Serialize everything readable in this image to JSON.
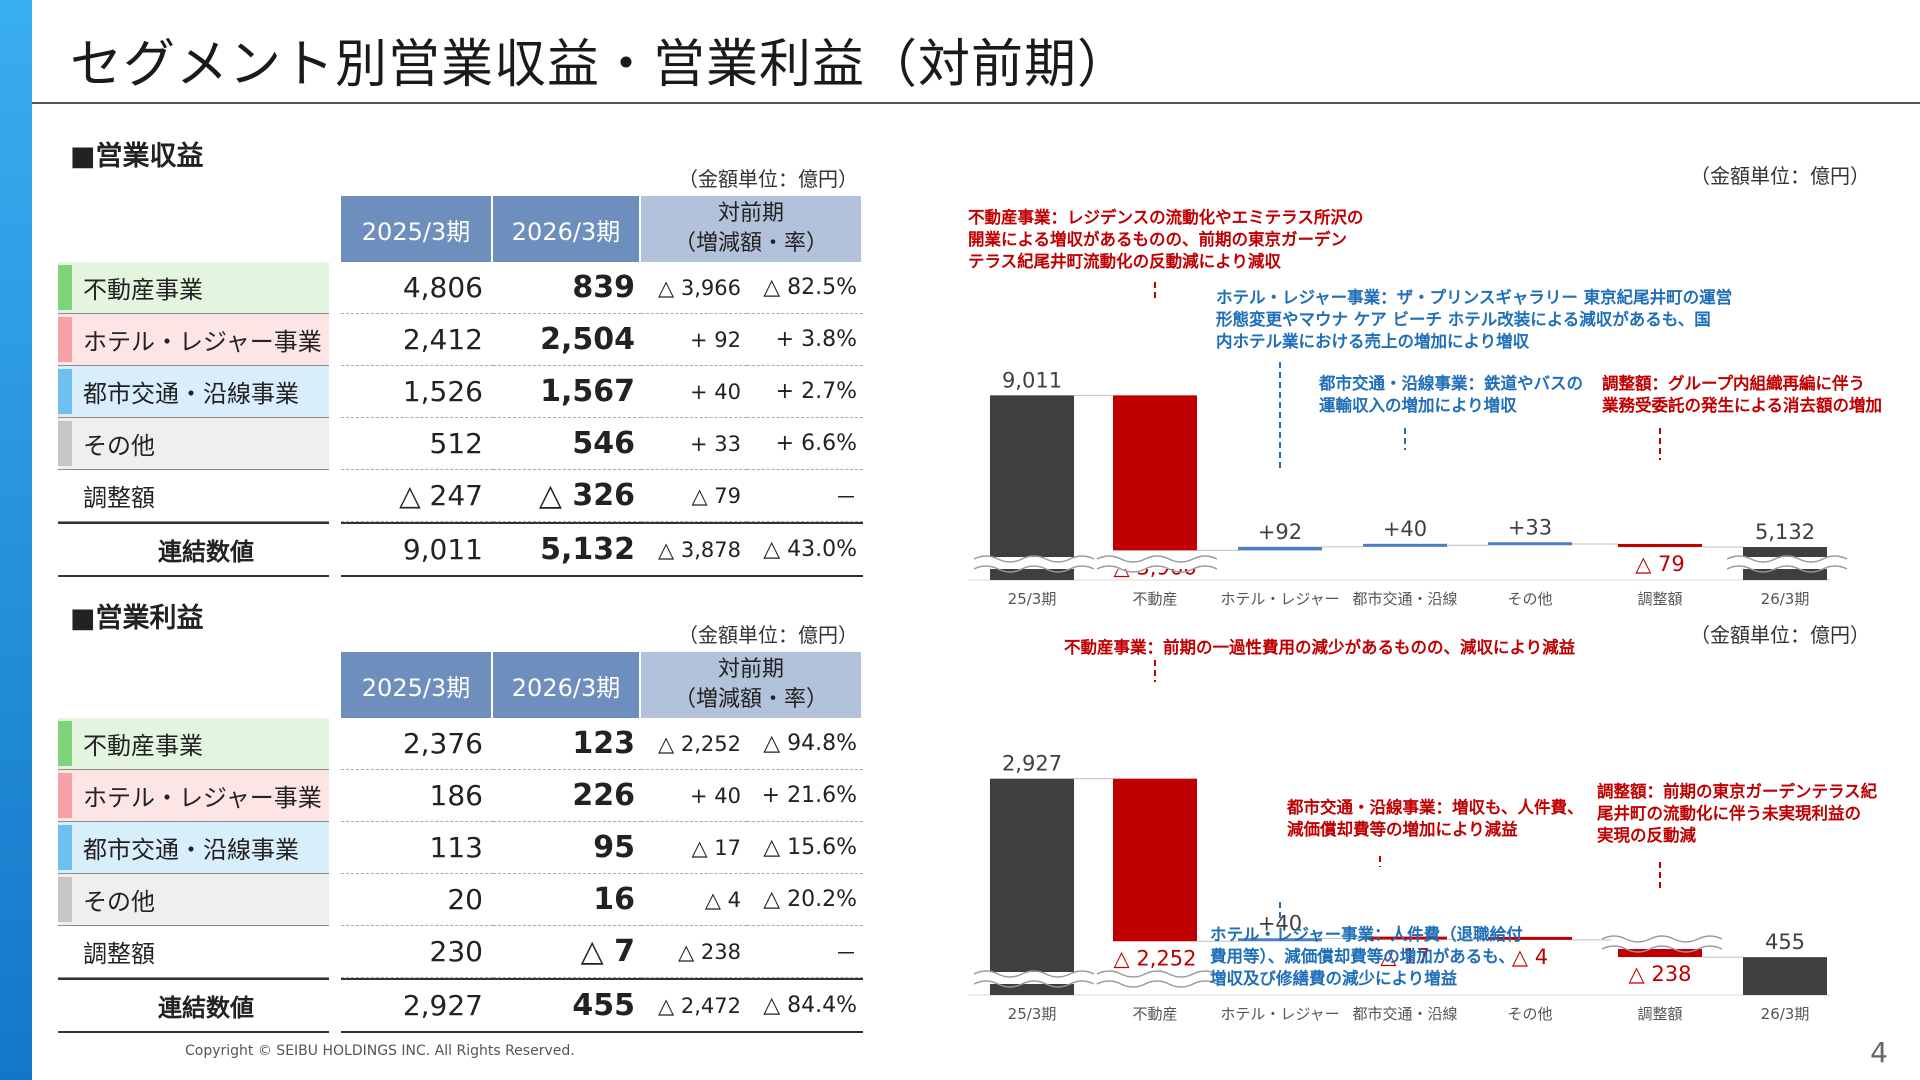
{
  "title": "セグメント別営業収益・営業利益（対前期）",
  "copyright": "Copyright © SEIBU HOLDINGS INC. All Rights Reserved.",
  "page_number": "4",
  "colors": {
    "accent": "#1377c8",
    "header": "#6e8fbd",
    "header_yoy": "#b2c2da",
    "bar_dark": "#3f3f3f",
    "bar_red": "#c00000",
    "bar_blue": "#4a7fc1",
    "note_red": "#c00000",
    "note_blue": "#1f6fb8"
  },
  "revenue": {
    "heading": "■営業収益",
    "unit": "（金額単位：億円）",
    "columns": {
      "prev": "2025/3期",
      "curr": "2026/3期",
      "yoy_line1": "対前期",
      "yoy_line2": "（増減額・率）"
    },
    "rows": [
      {
        "name": "不動産事業",
        "prev": "4,806",
        "curr": "839",
        "diff": "△ 3,966",
        "rate": "△ 82.5%"
      },
      {
        "name": "ホテル・レジャー事業",
        "prev": "2,412",
        "curr": "2,504",
        "diff": "+ 92",
        "rate": "+ 3.8%"
      },
      {
        "name": "都市交通・沿線事業",
        "prev": "1,526",
        "curr": "1,567",
        "diff": "+ 40",
        "rate": "+ 2.7%"
      },
      {
        "name": "その他",
        "prev": "512",
        "curr": "546",
        "diff": "+ 33",
        "rate": "+ 6.6%"
      },
      {
        "name": "調整額",
        "prev": "△ 247",
        "curr": "△ 326",
        "diff": "△ 79",
        "rate": "－"
      },
      {
        "name": "連結数値",
        "prev": "9,011",
        "curr": "5,132",
        "diff": "△ 3,878",
        "rate": "△ 43.0%"
      }
    ]
  },
  "profit": {
    "heading": "■営業利益",
    "unit": "（金額単位：億円）",
    "columns": {
      "prev": "2025/3期",
      "curr": "2026/3期",
      "yoy_line1": "対前期",
      "yoy_line2": "（増減額・率）"
    },
    "rows": [
      {
        "name": "不動産事業",
        "prev": "2,376",
        "curr": "123",
        "diff": "△ 2,252",
        "rate": "△ 94.8%"
      },
      {
        "name": "ホテル・レジャー事業",
        "prev": "186",
        "curr": "226",
        "diff": "+ 40",
        "rate": "+ 21.6%"
      },
      {
        "name": "都市交通・沿線事業",
        "prev": "113",
        "curr": "95",
        "diff": "△ 17",
        "rate": "△ 15.6%"
      },
      {
        "name": "その他",
        "prev": "20",
        "curr": "16",
        "diff": "△ 4",
        "rate": "△ 20.2%"
      },
      {
        "name": "調整額",
        "prev": "230",
        "curr": "△ 7",
        "diff": "△ 238",
        "rate": "－"
      },
      {
        "name": "連結数値",
        "prev": "2,927",
        "curr": "455",
        "diff": "△ 2,472",
        "rate": "△ 84.4%"
      }
    ]
  },
  "chart_data": [
    {
      "type": "waterfall",
      "unit": "（金額単位：億円）",
      "categories": [
        "25/3期",
        "不動産",
        "ホテル・レジャー",
        "都市交通・沿線",
        "その他",
        "調整額",
        "26/3期"
      ],
      "values": [
        9011,
        -3966,
        92,
        40,
        33,
        -79,
        5132
      ],
      "labels": [
        "9,011",
        "△ 3,966",
        "+92",
        "+40",
        "+33",
        "△ 79",
        "5,132"
      ],
      "axis_break": true,
      "notes": [
        {
          "text": [
            "不動産事業：レジデンスの流動化やエミテラス所沢の",
            "開業による増収があるものの、前期の東京ガーデン",
            "テラス紀尾井町流動化の反動減により減収"
          ],
          "color": "red"
        },
        {
          "text": [
            "ホテル・レジャー事業：ザ・プリンスギャラリー 東京紀尾井町の運営",
            "形態変更やマウナ ケア ビーチ ホテル改装による減収があるも、国",
            "内ホテル業における売上の増加により増収"
          ],
          "color": "blue"
        },
        {
          "text": [
            "都市交通・沿線事業：鉄道やバスの",
            "運輸収入の増加により増収"
          ],
          "color": "blue"
        },
        {
          "text": [
            "調整額：グループ内組織再編に伴う",
            "業務受委託の発生による消去額の増加"
          ],
          "color": "red"
        }
      ]
    },
    {
      "type": "waterfall",
      "unit": "（金額単位：億円）",
      "categories": [
        "25/3期",
        "不動産",
        "ホテル・レジャー",
        "都市交通・沿線",
        "その他",
        "調整額",
        "26/3期"
      ],
      "values": [
        2927,
        -2252,
        40,
        -17,
        -4,
        -238,
        455
      ],
      "labels": [
        "2,927",
        "△ 2,252",
        "+40",
        "△ 17",
        "△ 4",
        "△ 238",
        "455"
      ],
      "axis_break": true,
      "notes": [
        {
          "text": [
            "不動産事業：前期の一過性費用の減少があるものの、減収により減益"
          ],
          "color": "red"
        },
        {
          "text": [
            "都市交通・沿線事業：増収も、人件費、",
            "減価償却費等の増加により減益"
          ],
          "color": "red"
        },
        {
          "text": [
            "調整額：前期の東京ガーデンテラス紀",
            "尾井町の流動化に伴う未実現利益の",
            "実現の反動減"
          ],
          "color": "red"
        },
        {
          "text": [
            "ホテル・レジャー事業：人件費（退職給付",
            "費用等）、減価償却費等の増加があるも、",
            "増収及び修繕費の減少により増益"
          ],
          "color": "blue"
        }
      ]
    }
  ]
}
